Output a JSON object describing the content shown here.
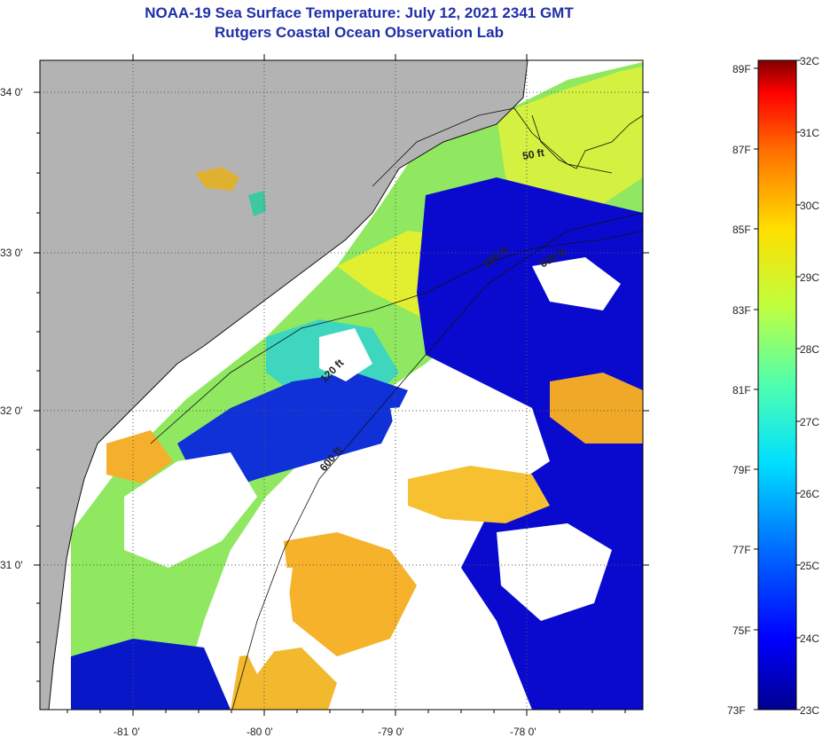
{
  "title": "NOAA-19 Sea Surface Temperature:  July 12, 2021 2341 GMT",
  "subtitle": "Rutgers Coastal Ocean Observation Lab",
  "map": {
    "lat_labels": [
      "34 0'",
      "33 0'",
      "32 0'",
      "31 0'"
    ],
    "lon_labels": [
      "-81 0'",
      "-80 0'",
      "-79 0'",
      "-78 0'"
    ],
    "isobath_labels": [
      "50 ft",
      "120 ft",
      "600 ft",
      "120 ft",
      "600 ft"
    ],
    "colors": {
      "land": "#b3b3b3",
      "cloud": "#ffffff"
    }
  },
  "colorbar": {
    "celsius_labels": [
      "32C",
      "31C",
      "30C",
      "29C",
      "28C",
      "27C",
      "26C",
      "25C",
      "24C",
      "23C"
    ],
    "fahrenheit_labels": [
      "89F",
      "87F",
      "85F",
      "83F",
      "81F",
      "79F",
      "77F",
      "75F",
      "73F"
    ],
    "colors": [
      "#00008f",
      "#0000ff",
      "#006fff",
      "#00dfff",
      "#4fffaf",
      "#bfff3f",
      "#ffdf00",
      "#ff7000",
      "#ff0000",
      "#800000"
    ]
  }
}
